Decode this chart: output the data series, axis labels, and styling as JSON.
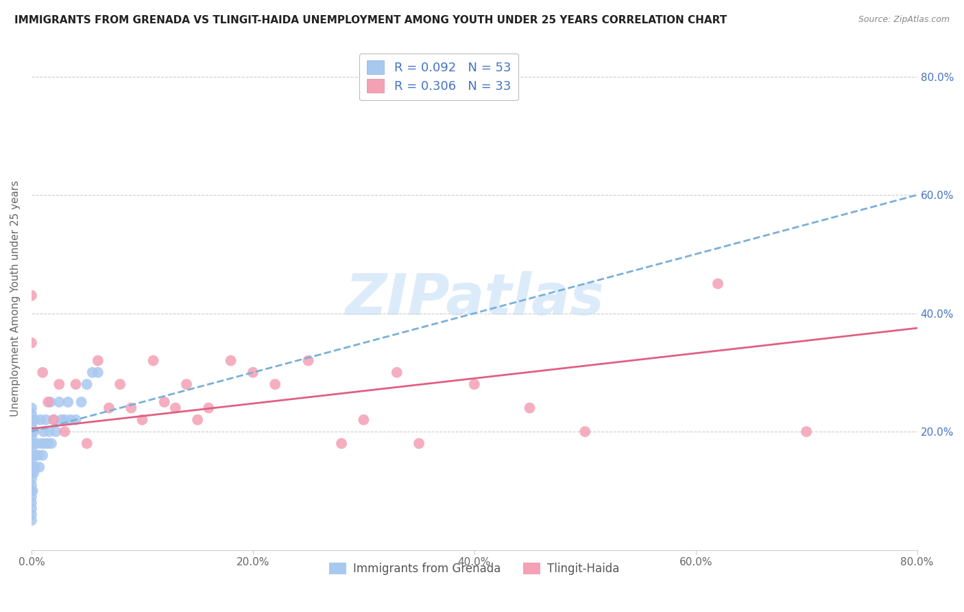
{
  "title": "IMMIGRANTS FROM GRENADA VS TLINGIT-HAIDA UNEMPLOYMENT AMONG YOUTH UNDER 25 YEARS CORRELATION CHART",
  "source": "Source: ZipAtlas.com",
  "ylabel": "Unemployment Among Youth under 25 years",
  "series": [
    {
      "name": "Immigrants from Grenada",
      "R": 0.092,
      "N": 53,
      "color": "#a8c8f0",
      "line_color": "#7ab0d8",
      "line_style": "--",
      "trendline_x0": 0.0,
      "trendline_y0": 0.2,
      "trendline_x1": 0.8,
      "trendline_y1": 0.6,
      "x": [
        0.0,
        0.0,
        0.0,
        0.0,
        0.0,
        0.0,
        0.0,
        0.0,
        0.0,
        0.0,
        0.0,
        0.0,
        0.0,
        0.0,
        0.0,
        0.0,
        0.0,
        0.0,
        0.0,
        0.0,
        0.001,
        0.001,
        0.001,
        0.002,
        0.002,
        0.003,
        0.003,
        0.004,
        0.005,
        0.006,
        0.007,
        0.008,
        0.009,
        0.01,
        0.011,
        0.012,
        0.013,
        0.015,
        0.016,
        0.017,
        0.018,
        0.02,
        0.022,
        0.025,
        0.027,
        0.03,
        0.033,
        0.035,
        0.04,
        0.045,
        0.05,
        0.055,
        0.06
      ],
      "y": [
        0.05,
        0.06,
        0.07,
        0.08,
        0.09,
        0.1,
        0.11,
        0.12,
        0.13,
        0.14,
        0.15,
        0.16,
        0.17,
        0.18,
        0.19,
        0.2,
        0.21,
        0.22,
        0.23,
        0.24,
        0.1,
        0.14,
        0.18,
        0.13,
        0.2,
        0.14,
        0.22,
        0.16,
        0.18,
        0.16,
        0.14,
        0.22,
        0.18,
        0.16,
        0.2,
        0.18,
        0.22,
        0.18,
        0.2,
        0.25,
        0.18,
        0.22,
        0.2,
        0.25,
        0.22,
        0.22,
        0.25,
        0.22,
        0.22,
        0.25,
        0.28,
        0.3,
        0.3
      ]
    },
    {
      "name": "Tlingit-Haida",
      "R": 0.306,
      "N": 33,
      "color": "#f4a0b5",
      "line_color": "#e06080",
      "line_style": "-",
      "trendline_x0": 0.0,
      "trendline_y0": 0.205,
      "trendline_x1": 0.8,
      "trendline_y1": 0.375,
      "x": [
        0.0,
        0.0,
        0.01,
        0.015,
        0.02,
        0.025,
        0.03,
        0.04,
        0.05,
        0.06,
        0.07,
        0.08,
        0.09,
        0.1,
        0.11,
        0.12,
        0.13,
        0.14,
        0.15,
        0.16,
        0.18,
        0.2,
        0.22,
        0.25,
        0.28,
        0.3,
        0.33,
        0.35,
        0.4,
        0.45,
        0.5,
        0.62,
        0.7
      ],
      "y": [
        0.43,
        0.35,
        0.3,
        0.25,
        0.22,
        0.28,
        0.2,
        0.28,
        0.18,
        0.32,
        0.24,
        0.28,
        0.24,
        0.22,
        0.32,
        0.25,
        0.24,
        0.28,
        0.22,
        0.24,
        0.32,
        0.3,
        0.28,
        0.32,
        0.18,
        0.22,
        0.3,
        0.18,
        0.28,
        0.24,
        0.2,
        0.45,
        0.2
      ]
    }
  ],
  "xlim": [
    0.0,
    0.8
  ],
  "ylim": [
    0.0,
    0.85
  ],
  "xticks": [
    0.0,
    0.2,
    0.4,
    0.6,
    0.8
  ],
  "xticklabels": [
    "0.0%",
    "20.0%",
    "40.0%",
    "60.0%",
    "80.0%"
  ],
  "yticks_right": [
    0.2,
    0.4,
    0.6,
    0.8
  ],
  "yticklabels_right": [
    "20.0%",
    "40.0%",
    "60.0%",
    "80.0%"
  ],
  "grid_color": "#cccccc",
  "background_color": "#ffffff",
  "watermark_text": "ZIPatlas",
  "watermark_color": "#c5dff5",
  "title_fontsize": 11,
  "source_fontsize": 9,
  "tick_fontsize": 11,
  "ylabel_fontsize": 11,
  "legend_fontsize": 13
}
